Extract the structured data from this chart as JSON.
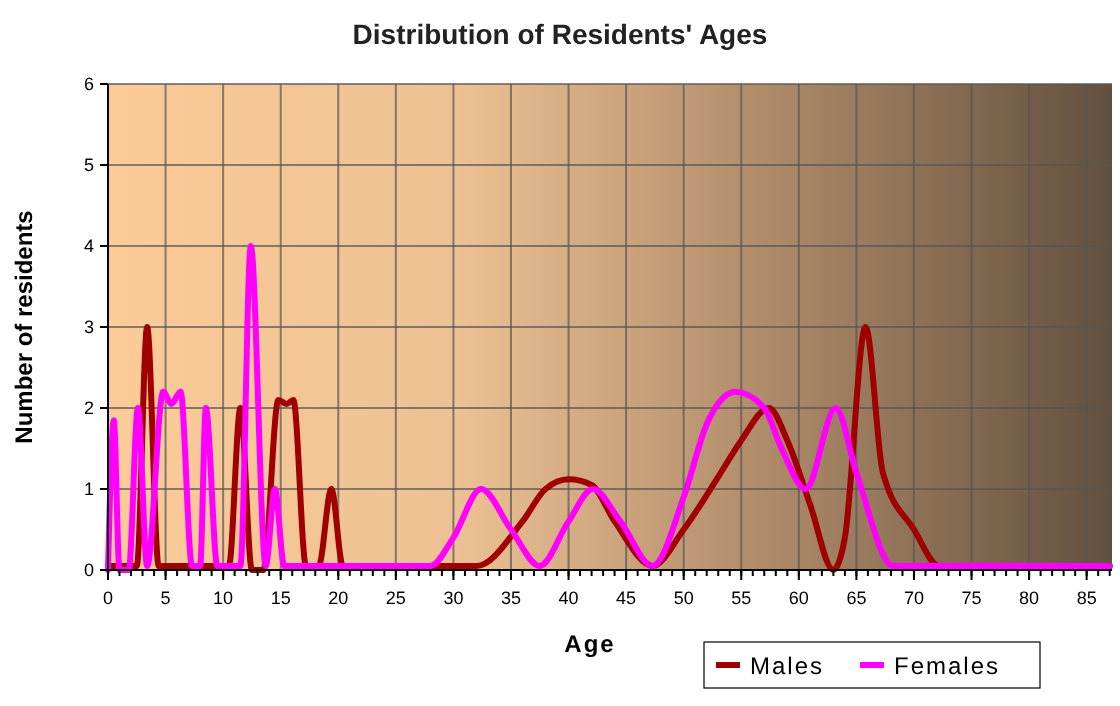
{
  "chart_data": {
    "type": "line",
    "title": "Distribution of Residents' Ages",
    "xlabel": "Age",
    "ylabel": "Number of residents",
    "xlim": [
      0,
      87.2
    ],
    "xticks": [
      0,
      5,
      10,
      15,
      20,
      25,
      30,
      35,
      40,
      45,
      50,
      55,
      60,
      65,
      70,
      75,
      80,
      85
    ],
    "ylim": [
      0,
      6
    ],
    "yticks": [
      0,
      1,
      2,
      3,
      4,
      5,
      6
    ],
    "grid": true,
    "legend": "bottom right",
    "marker": "none",
    "line_style": "solid",
    "series": [
      {
        "name": "Males",
        "color": "#a00000",
        "x": [
          0,
          2.5,
          3.4,
          4.4,
          10.5,
          11.5,
          12.5,
          13.5,
          14.8,
          15.5,
          16.1,
          17.2,
          18.3,
          19.4,
          20.4,
          32,
          36,
          38,
          40,
          42,
          44,
          47.3,
          50,
          53,
          55,
          57.4,
          59,
          61,
          63,
          64,
          65.8,
          67.3,
          70,
          72.2,
          87
        ],
        "values": [
          0.05,
          0.05,
          3,
          0.05,
          0.05,
          2,
          0,
          0,
          2.1,
          2.05,
          2.1,
          0.05,
          0.05,
          1,
          0.05,
          0.05,
          0.6,
          1,
          1.12,
          1.05,
          0.6,
          0.05,
          0.5,
          1.15,
          1.6,
          2,
          1.6,
          0.8,
          0,
          0.4,
          3,
          1.2,
          0.5,
          0.05,
          0.05
        ]
      },
      {
        "name": "Females",
        "color": "#ff00ff",
        "x": [
          0,
          0.5,
          1,
          1.8,
          2.6,
          3.4,
          4.8,
          5.5,
          6.3,
          7.3,
          8,
          8.5,
          9.5,
          11.5,
          12.4,
          13.7,
          14.5,
          15.3,
          28,
          30,
          32.4,
          35,
          37.5,
          40,
          42.1,
          44.5,
          47.3,
          50,
          52,
          54.5,
          57,
          58.5,
          60.6,
          63.2,
          65,
          68.2,
          87
        ],
        "values": [
          0,
          1.85,
          0,
          0,
          2,
          0.05,
          2.2,
          2.05,
          2.2,
          0.05,
          0.05,
          2,
          0.05,
          0.05,
          4,
          0.05,
          1,
          0.05,
          0.05,
          0.4,
          1,
          0.5,
          0.05,
          0.6,
          1,
          0.6,
          0.05,
          0.9,
          1.8,
          2.2,
          2,
          1.5,
          1,
          2,
          1.2,
          0.05,
          0.05
        ]
      }
    ]
  }
}
